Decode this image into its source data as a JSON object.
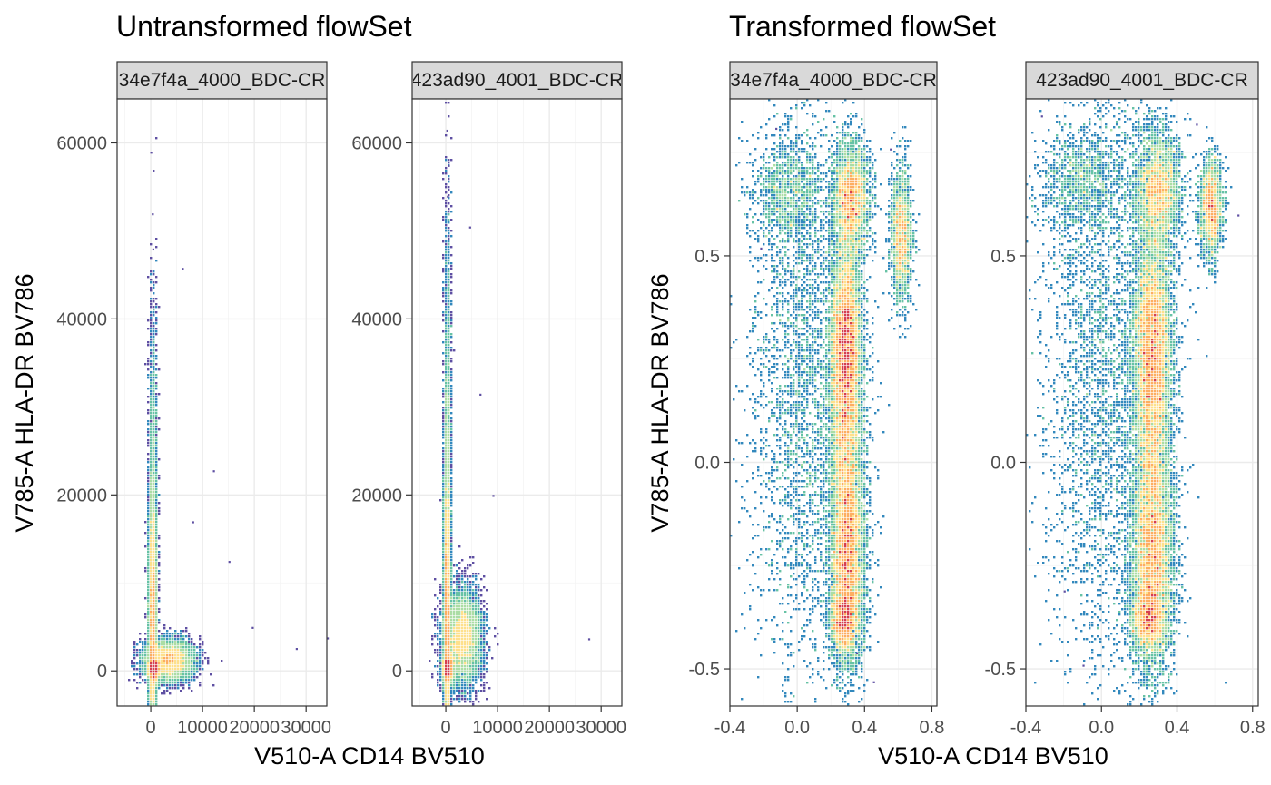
{
  "colors": {
    "density_low": "#5e4fa2",
    "density_mid1": "#3288bd",
    "density_mid2": "#66c2a5",
    "density_mid3": "#abdda4",
    "density_high1": "#fee08b",
    "density_high2": "#fdae61",
    "density_peak": "#d53e4f",
    "strip_background": "#d9d9d9"
  },
  "chart_data": [
    {
      "type": "heatmap",
      "title": "Untransformed flowSet",
      "xlabel": "V510-A CD14 BV510",
      "ylabel": "V785-A HLA-DR BV786",
      "xlim": [
        -6500,
        34000
      ],
      "ylim": [
        -4000,
        65000
      ],
      "x_ticks": [
        0,
        10000,
        20000,
        30000
      ],
      "x_tick_labels": [
        "0",
        "10000",
        "20000",
        "30000"
      ],
      "y_ticks": [
        0,
        20000,
        40000,
        60000
      ],
      "y_tick_labels": [
        "0",
        "20000",
        "40000",
        "60000"
      ],
      "grid": true,
      "panels": [
        {
          "strip_label": "34e7f4a_4000_BDC-CR",
          "clusters": [
            {
              "x": 400,
              "y": 6000,
              "sx": 350,
              "sy": 7000,
              "w": 0.45
            },
            {
              "x": 3500,
              "y": 1200,
              "sx": 2200,
              "sy": 1100,
              "w": 0.32
            },
            {
              "x": 600,
              "y": 200,
              "sx": 500,
              "sy": 600,
              "w": 0.16
            },
            {
              "x": 500,
              "y": 22000,
              "sx": 400,
              "sy": 10000,
              "w": 0.07
            }
          ],
          "outliers": [
            [
              -100,
              59000
            ],
            [
              200,
              52000
            ],
            [
              6000,
              45800
            ],
            [
              12000,
              22800
            ],
            [
              28000,
              2600
            ],
            [
              34000,
              3800
            ],
            [
              15000,
              12500
            ],
            [
              19500,
              5000
            ],
            [
              300,
              48000
            ],
            [
              8000,
              17000
            ]
          ]
        },
        {
          "strip_label": "423ad90_4001_BDC-CR",
          "clusters": [
            {
              "x": 300,
              "y": 7000,
              "sx": 300,
              "sy": 8500,
              "w": 0.42
            },
            {
              "x": 3200,
              "y": 3800,
              "sx": 1800,
              "sy": 2600,
              "w": 0.34
            },
            {
              "x": 500,
              "y": 300,
              "sx": 450,
              "sy": 700,
              "w": 0.16
            },
            {
              "x": 400,
              "y": 28000,
              "sx": 350,
              "sy": 12000,
              "w": 0.08
            }
          ],
          "outliers": [
            [
              100,
              61500
            ],
            [
              400,
              57500
            ],
            [
              4500,
              50500
            ],
            [
              6500,
              31500
            ],
            [
              27500,
              3700
            ],
            [
              200,
              54000
            ],
            [
              9000,
              20000
            ]
          ]
        }
      ]
    },
    {
      "type": "heatmap",
      "title": "Transformed flowSet",
      "xlabel": "V510-A CD14 BV510",
      "ylabel": "V785-A HLA-DR BV786",
      "xlim": [
        -0.4,
        0.83
      ],
      "ylim": [
        -0.59,
        0.88
      ],
      "x_ticks": [
        -0.4,
        0.0,
        0.4,
        0.8
      ],
      "x_tick_labels": [
        "-0.4",
        "0.0",
        "0.4",
        "0.8"
      ],
      "y_ticks": [
        -0.5,
        0.0,
        0.5
      ],
      "y_tick_labels": [
        "-0.5",
        "0.0",
        "0.5"
      ],
      "grid": true,
      "panels": [
        {
          "strip_label": "34e7f4a_4000_BDC-CR",
          "clusters": [
            {
              "x": 0.29,
              "y": 0.29,
              "sx": 0.045,
              "sy": 0.12,
              "w": 0.24
            },
            {
              "x": 0.3,
              "y": -0.24,
              "sx": 0.05,
              "sy": 0.12,
              "w": 0.22
            },
            {
              "x": 0.29,
              "y": 0.04,
              "sx": 0.05,
              "sy": 0.14,
              "w": 0.13
            },
            {
              "x": 0.32,
              "y": 0.64,
              "sx": 0.055,
              "sy": 0.07,
              "w": 0.12
            },
            {
              "x": 0.62,
              "y": 0.55,
              "sx": 0.03,
              "sy": 0.08,
              "w": 0.07
            },
            {
              "x": 0.05,
              "y": 0.2,
              "sx": 0.16,
              "sy": 0.35,
              "w": 0.12
            },
            {
              "x": -0.05,
              "y": 0.65,
              "sx": 0.1,
              "sy": 0.06,
              "w": 0.04
            },
            {
              "x": 0.28,
              "y": -0.38,
              "sx": 0.04,
              "sy": 0.04,
              "w": 0.06
            }
          ],
          "outliers": [
            [
              0.45,
              -0.53
            ],
            [
              -0.22,
              0.52
            ],
            [
              0.55,
              0.76
            ],
            [
              -0.13,
              0.81
            ],
            [
              0.35,
              -0.46
            ]
          ]
        },
        {
          "strip_label": "423ad90_4001_BDC-CR",
          "clusters": [
            {
              "x": 0.27,
              "y": 0.3,
              "sx": 0.05,
              "sy": 0.13,
              "w": 0.23
            },
            {
              "x": 0.27,
              "y": -0.24,
              "sx": 0.055,
              "sy": 0.13,
              "w": 0.22
            },
            {
              "x": 0.27,
              "y": 0.05,
              "sx": 0.05,
              "sy": 0.15,
              "w": 0.13
            },
            {
              "x": 0.3,
              "y": 0.66,
              "sx": 0.06,
              "sy": 0.075,
              "w": 0.12
            },
            {
              "x": 0.58,
              "y": 0.62,
              "sx": 0.03,
              "sy": 0.06,
              "w": 0.07
            },
            {
              "x": 0.02,
              "y": 0.25,
              "sx": 0.17,
              "sy": 0.37,
              "w": 0.13
            },
            {
              "x": -0.1,
              "y": 0.68,
              "sx": 0.12,
              "sy": 0.06,
              "w": 0.04
            },
            {
              "x": 0.25,
              "y": -0.38,
              "sx": 0.05,
              "sy": 0.04,
              "w": 0.06
            }
          ],
          "outliers": [
            [
              -0.1,
              -0.49
            ],
            [
              -0.32,
              0.84
            ],
            [
              0.72,
              0.6
            ],
            [
              -0.2,
              -0.31
            ],
            [
              0.5,
              0.82
            ]
          ]
        }
      ]
    }
  ]
}
